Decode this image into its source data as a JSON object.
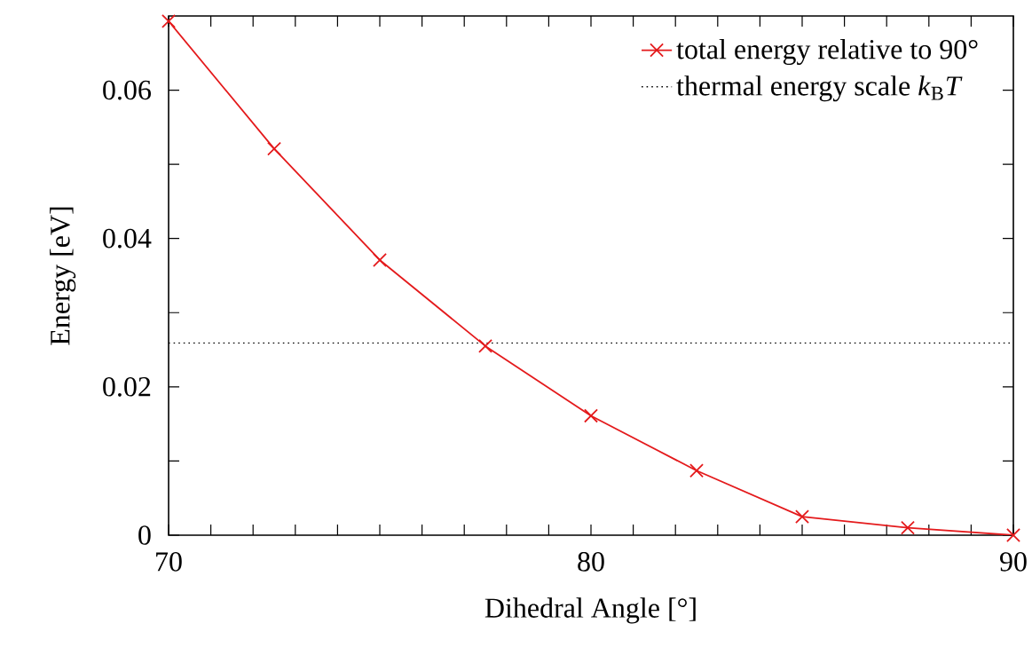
{
  "chart_data": {
    "type": "line",
    "xlabel": "Dihedral Angle [°]",
    "ylabel": "Energy [eV]",
    "x": [
      70,
      72.5,
      75,
      77.5,
      80,
      82.5,
      85,
      87.5,
      90
    ],
    "series": [
      {
        "name": "total energy relative to 90°",
        "color": "#e41a1c",
        "values": [
          0.0693,
          0.0521,
          0.0371,
          0.0255,
          0.0161,
          0.0087,
          0.0025,
          0.001,
          0.0
        ]
      }
    ],
    "marker": "cross",
    "line_style": "solid",
    "ref_lines": [
      {
        "axis": "y",
        "value": 0.0259,
        "label": "thermal energy scale *k*$_{B}$*T*",
        "color": "#000000",
        "line_style": "dotted"
      }
    ],
    "xlim": [
      70,
      90
    ],
    "ylim": [
      0,
      0.07
    ],
    "xticks": [
      70,
      {
        "value": 71,
        "label": null
      },
      {
        "value": 72,
        "label": null
      },
      {
        "value": 73,
        "label": null
      },
      {
        "value": 74,
        "label": null
      },
      {
        "value": 75,
        "label": null
      },
      {
        "value": 76,
        "label": null
      },
      {
        "value": 77,
        "label": null
      },
      {
        "value": 78,
        "label": null
      },
      {
        "value": 79,
        "label": null
      },
      80,
      {
        "value": 81,
        "label": null
      },
      {
        "value": 82,
        "label": null
      },
      {
        "value": 83,
        "label": null
      },
      {
        "value": 84,
        "label": null
      },
      {
        "value": 85,
        "label": null
      },
      {
        "value": 86,
        "label": null
      },
      {
        "value": 87,
        "label": null
      },
      {
        "value": 88,
        "label": null
      },
      {
        "value": 89,
        "label": null
      },
      90
    ],
    "yticks": [
      0,
      {
        "value": 0.01,
        "label": null
      },
      0.02,
      {
        "value": 0.03,
        "label": null
      },
      0.04,
      {
        "value": 0.05,
        "label": null
      },
      0.06
    ],
    "grid": false,
    "legend": "top right"
  }
}
